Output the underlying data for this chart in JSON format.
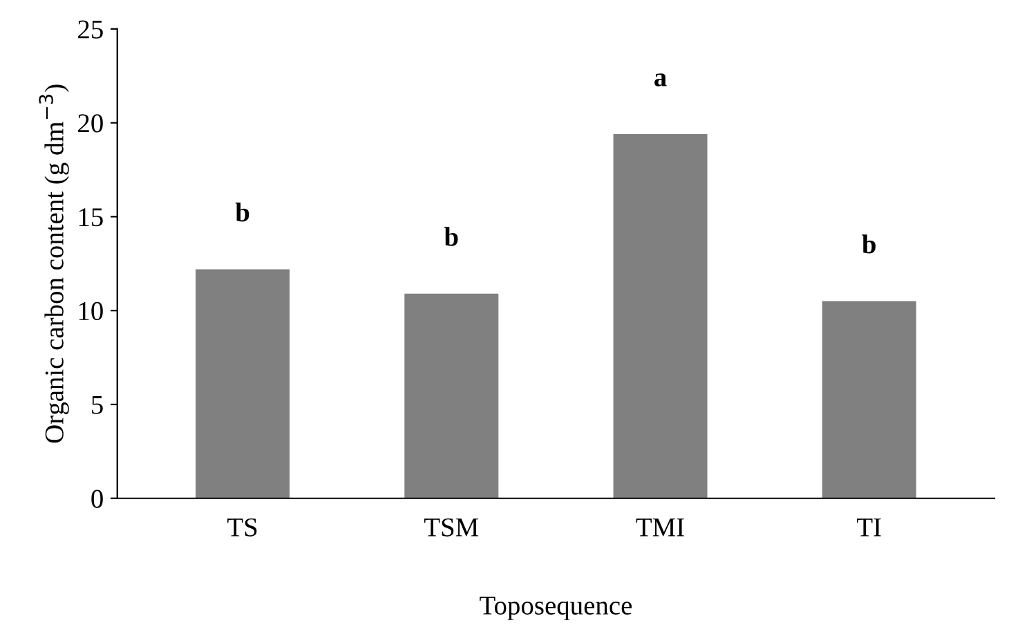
{
  "chart_data": {
    "type": "bar",
    "xlabel": "Toposequence",
    "ylabel": "Organic carbon content (g dm$^{−3}$)",
    "categories": [
      "TS",
      "TSM",
      "TMI",
      "TI"
    ],
    "values": [
      12.2,
      10.9,
      19.4,
      10.5
    ],
    "color": "#808080",
    "ylim": [
      0,
      25
    ],
    "yticks": [
      0,
      5,
      10,
      15,
      20,
      25
    ],
    "grid": false,
    "annotations": [
      "b",
      "b",
      "a",
      "b"
    ]
  }
}
